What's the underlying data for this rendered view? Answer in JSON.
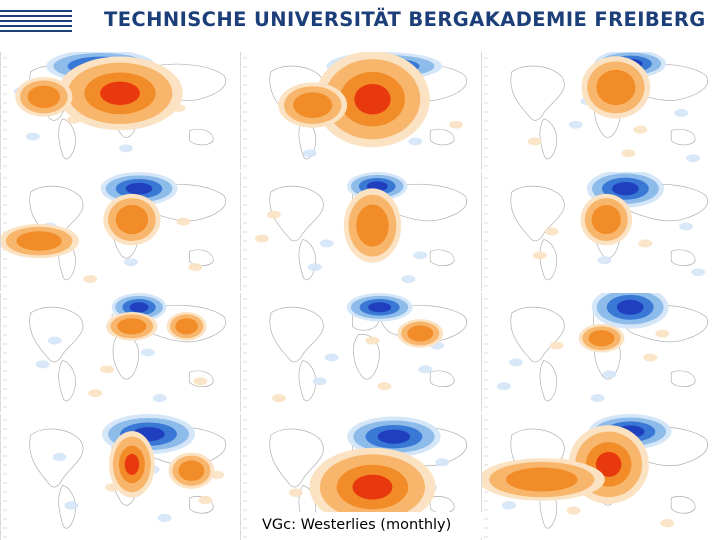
{
  "header": {
    "logo_icon": "tu-freiberg-stripes-logo",
    "title": "TECHNISCHE UNIVERSITÄT BERGAKADEMIE FREIBERG"
  },
  "figure": {
    "caption": "VGc: Westerlies (monthly)",
    "rows": 4,
    "cols": 3,
    "colors": {
      "warm_strong": "#e8380d",
      "warm_mid": "#f28c28",
      "warm_light": "#f7b66b",
      "warm_faint": "#fbe2c2",
      "cool_strong": "#1f3fbf",
      "cool_mid": "#3a78d6",
      "cool_light": "#8dbbea",
      "cool_faint": "#d4e6f7",
      "coastline": "#b0b0b0"
    },
    "panels": [
      {
        "name": "panel-r1-c1",
        "anomaly": "strong"
      },
      {
        "name": "panel-r1-c2",
        "anomaly": "strong"
      },
      {
        "name": "panel-r1-c3",
        "anomaly": "moderate"
      },
      {
        "name": "panel-r2-c1",
        "anomaly": "moderate"
      },
      {
        "name": "panel-r2-c2",
        "anomaly": "moderate"
      },
      {
        "name": "panel-r2-c3",
        "anomaly": "moderate"
      },
      {
        "name": "panel-r3-c1",
        "anomaly": "weak"
      },
      {
        "name": "panel-r3-c2",
        "anomaly": "weak"
      },
      {
        "name": "panel-r3-c3",
        "anomaly": "moderate"
      },
      {
        "name": "panel-r4-c1",
        "anomaly": "strong"
      },
      {
        "name": "panel-r4-c2",
        "anomaly": "strong"
      },
      {
        "name": "panel-r4-c3",
        "anomaly": "strong"
      }
    ]
  }
}
